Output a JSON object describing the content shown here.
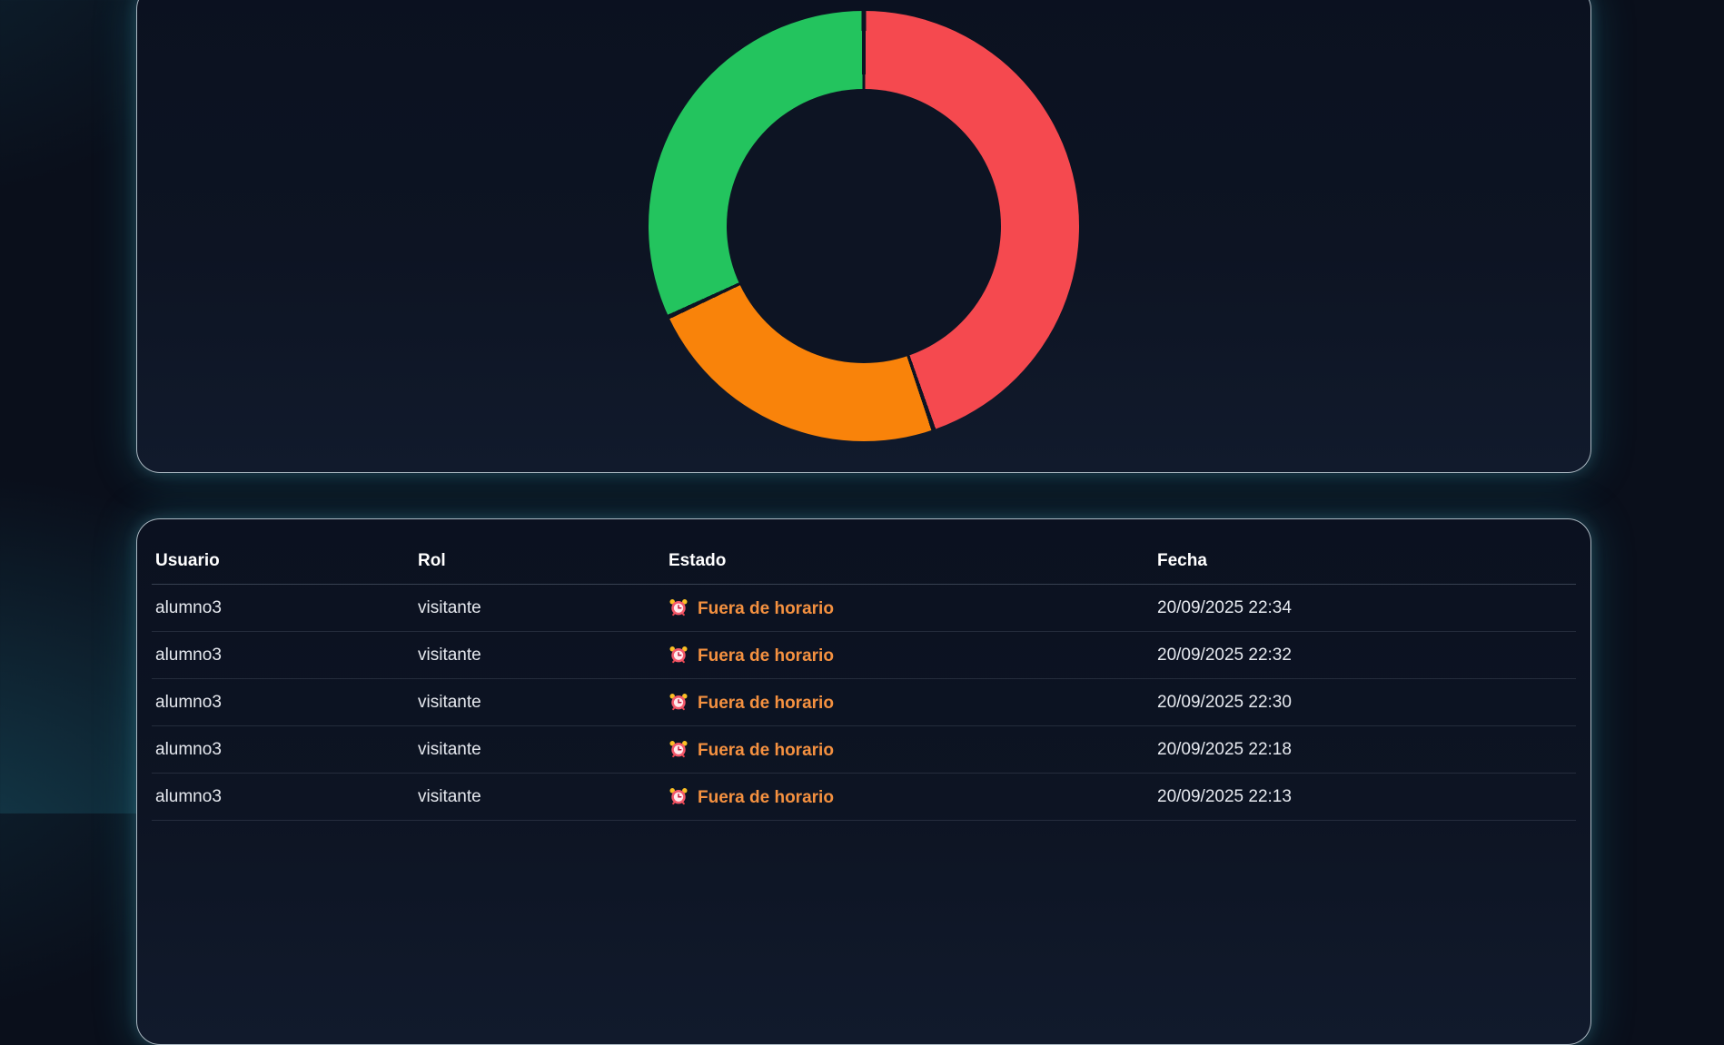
{
  "colors": {
    "page_background": "#0a0f1b",
    "card_background": "#0d1423",
    "card_border": "rgba(216,232,240,0.78)",
    "card_glow": "rgba(30,150,170,0.30)",
    "header_text": "#ffffff",
    "cell_text": "#e6e9ef",
    "estado_text": "#f59140",
    "divider": "rgba(148,163,184,0.25)"
  },
  "chart_data": {
    "type": "pie",
    "subtype": "doughnut",
    "title": "",
    "legend_position": "none",
    "direction": "clockwise-from-top",
    "categories": [
      "segment-red",
      "segment-orange",
      "segment-green"
    ],
    "values": [
      44.7,
      23.3,
      31.9
    ],
    "colors": [
      "#f5494f",
      "#f9830a",
      "#23c45e"
    ],
    "cutout_percent": 63.7,
    "separator_deg": 0.6,
    "separator_color": "#0d1423"
  },
  "table": {
    "columns": [
      "Usuario",
      "Rol",
      "Estado",
      "Fecha"
    ],
    "estado_icon": "alarm-clock-emoji",
    "estado_icon_char": "⏰",
    "rows": [
      {
        "usuario": "alumno3",
        "rol": "visitante",
        "estado": "Fuera de horario",
        "fecha": "20/09/2025 22:34"
      },
      {
        "usuario": "alumno3",
        "rol": "visitante",
        "estado": "Fuera de horario",
        "fecha": "20/09/2025 22:32"
      },
      {
        "usuario": "alumno3",
        "rol": "visitante",
        "estado": "Fuera de horario",
        "fecha": "20/09/2025 22:30"
      },
      {
        "usuario": "alumno3",
        "rol": "visitante",
        "estado": "Fuera de horario",
        "fecha": "20/09/2025 22:18"
      },
      {
        "usuario": "alumno3",
        "rol": "visitante",
        "estado": "Fuera de horario",
        "fecha": "20/09/2025 22:13"
      }
    ]
  }
}
